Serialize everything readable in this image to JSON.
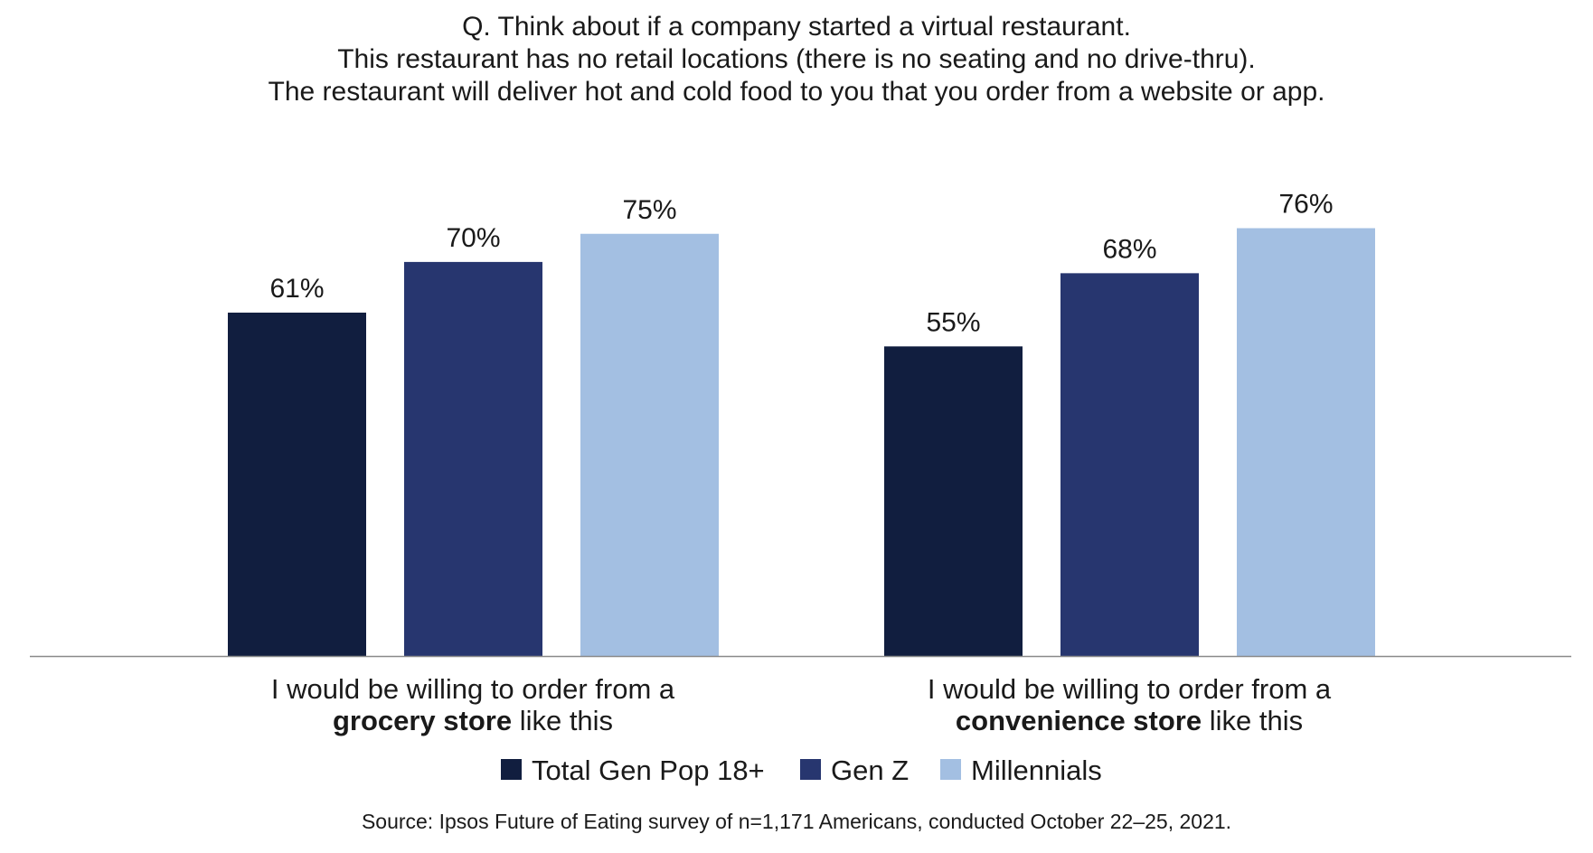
{
  "chart_data": {
    "type": "bar",
    "title_lines": [
      "Q. Think about if a company started a virtual restaurant.",
      "This restaurant has no retail locations (there is no seating and no drive-thru).",
      "The restaurant will deliver hot and cold food to you that you order from a website or app."
    ],
    "categories": [
      {
        "line1": "I would be willing to order from a",
        "line2_bold": "grocery store",
        "line2_rest": " like this"
      },
      {
        "line1": "I would be willing to order from a",
        "line2_bold": "convenience store",
        "line2_rest": " like this"
      }
    ],
    "series": [
      {
        "name": "Total Gen Pop 18+",
        "color": "#111e3f",
        "values": [
          61,
          55
        ],
        "labels": [
          "61%",
          "55%"
        ]
      },
      {
        "name": "Gen Z",
        "color": "#27366f",
        "values": [
          70,
          68
        ],
        "labels": [
          "70%",
          "68%"
        ]
      },
      {
        "name": "Millennials",
        "color": "#a3bfe2",
        "values": [
          75,
          76
        ],
        "labels": [
          "75%",
          "76%"
        ]
      }
    ],
    "ylim": [
      0,
      100
    ],
    "grid": false,
    "legend_position": "bottom",
    "source": "Source: Ipsos Future of Eating survey of n=1,171 Americans, conducted October 22–25, 2021."
  }
}
